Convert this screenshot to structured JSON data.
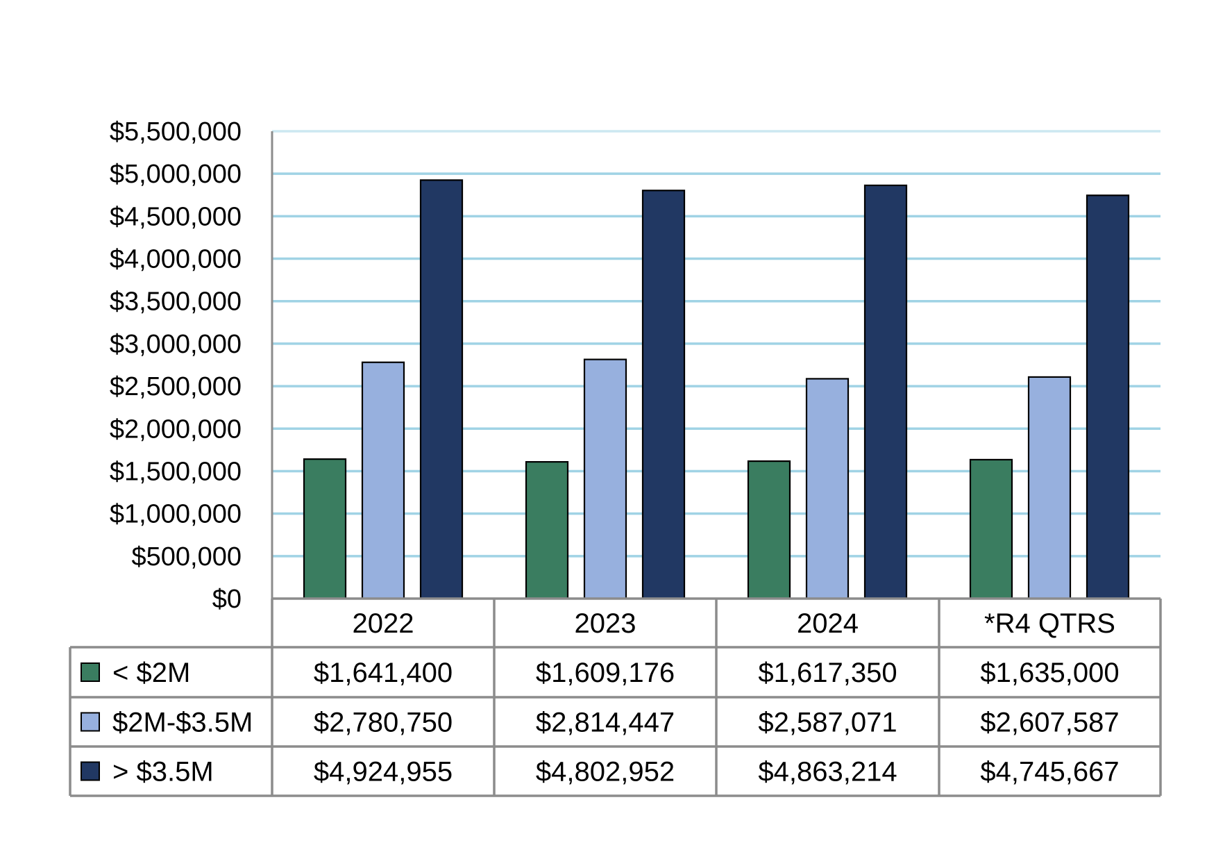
{
  "chart_data": {
    "type": "bar",
    "categories": [
      "2022",
      "2023",
      "2024",
      "*R4 QTRS"
    ],
    "series": [
      {
        "name": "< $2M",
        "color": "#3a7d60",
        "values": [
          1641400,
          1609176,
          1617350,
          1635000
        ],
        "labels": [
          "$1,641,400",
          "$1,609,176",
          "$1,617,350",
          "$1,635,000"
        ]
      },
      {
        "name": "$2M-$3.5M",
        "color": "#97b0de",
        "values": [
          2780750,
          2814447,
          2587071,
          2607587
        ],
        "labels": [
          "$2,780,750",
          "$2,814,447",
          "$2,587,071",
          "$2,607,587"
        ]
      },
      {
        "name": "> $3.5M",
        "color": "#213863",
        "values": [
          4924955,
          4802952,
          4863214,
          4745667
        ],
        "labels": [
          "$4,924,955",
          "$4,802,952",
          "$4,863,214",
          "$4,745,667"
        ]
      }
    ],
    "yticks": [
      0,
      500000,
      1000000,
      1500000,
      2000000,
      2500000,
      3000000,
      3500000,
      4000000,
      4500000,
      5000000,
      5500000
    ],
    "ytick_labels": [
      "$0",
      "$500,000",
      "$1,000,000",
      "$1,500,000",
      "$2,000,000",
      "$2,500,000",
      "$3,000,000",
      "$3,500,000",
      "$4,000,000",
      "$4,500,000",
      "$5,000,000",
      "$5,500,000"
    ],
    "ylim": [
      0,
      5500000
    ],
    "grid": true,
    "grid_color": "#8fcbe0",
    "legend": "data-table"
  }
}
